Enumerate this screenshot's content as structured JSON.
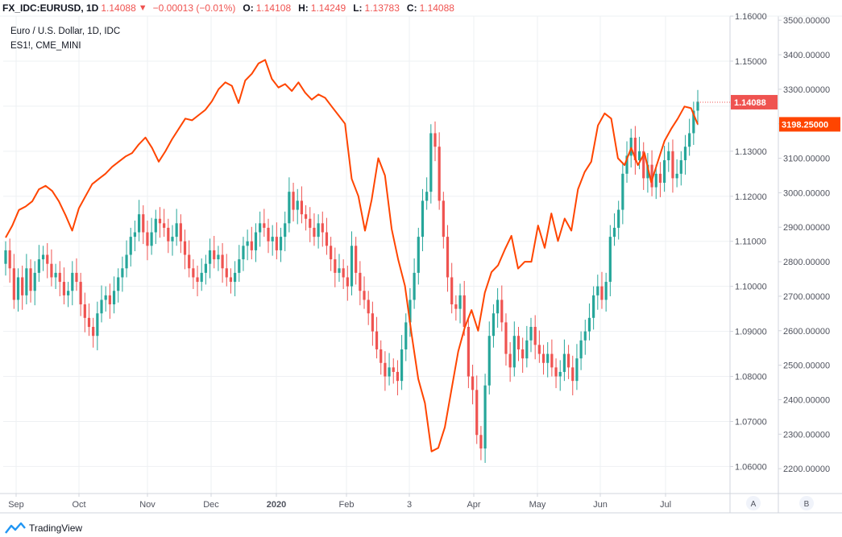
{
  "header": {
    "symbol": "FX_IDC:EURUSD, 1D",
    "last": "1.14088",
    "change": "−0.00013 (−0.01%)",
    "o_label": "O:",
    "o_value": "1.14108",
    "h_label": "H:",
    "h_value": "1.14249",
    "l_label": "L:",
    "l_value": "1.13783",
    "c_label": "C:",
    "c_value": "1.14088"
  },
  "legend": {
    "main_title": "Euro / U.S. Dollar, 1D, IDC",
    "compare_title": "ES1!, CME_MINI"
  },
  "footer": {
    "brand": "TradingView"
  },
  "scale_buttons": {
    "a": "A",
    "b": "B"
  },
  "colors": {
    "up": "#26a69a",
    "down": "#ef5350",
    "compare_line": "#ff4500",
    "grid": "#eef0f3",
    "axis_text": "#50535e",
    "border": "#d1d4dc"
  },
  "chart_data": {
    "type": "candlestick",
    "title": "Euro / U.S. Dollar, 1D, IDC",
    "x_tick_labels": [
      "Sep",
      "Oct",
      "Nov",
      "Dec",
      "2020",
      "Feb",
      "3",
      "Apr",
      "May",
      "Jun",
      "Jul"
    ],
    "left_axis": {
      "name": "EURUSD",
      "range": [
        1.054,
        1.16
      ],
      "ticks": [
        "1.16000",
        "1.15000",
        "1.14000",
        "1.13000",
        "1.12000",
        "1.11000",
        "1.10000",
        "1.09000",
        "1.08000",
        "1.07000",
        "1.06000"
      ],
      "last_price_label": "1.14088"
    },
    "right_axis": {
      "name": "ES1!",
      "range": [
        2128,
        3512
      ],
      "ticks": [
        "3500.00000",
        "3400.00000",
        "3300.00000",
        "3200.00000",
        "3100.00000",
        "3000.00000",
        "2900.00000",
        "2800.00000",
        "2700.00000",
        "2600.00000",
        "2500.00000",
        "2400.00000",
        "2300.00000",
        "2200.00000"
      ],
      "last_price_label": "3198.25000"
    },
    "series": [
      {
        "name": "EURUSD",
        "axis": "left",
        "style": "candles",
        "closes": [
          1.108,
          1.104,
          1.097,
          1.102,
          1.098,
          1.104,
          1.099,
          1.103,
          1.106,
          1.107,
          1.105,
          1.102,
          1.103,
          1.101,
          1.098,
          1.099,
          1.103,
          1.101,
          1.096,
          1.093,
          1.091,
          1.089,
          1.094,
          1.097,
          1.098,
          1.096,
          1.099,
          1.102,
          1.104,
          1.107,
          1.111,
          1.112,
          1.116,
          1.112,
          1.109,
          1.112,
          1.115,
          1.114,
          1.113,
          1.11,
          1.111,
          1.114,
          1.11,
          1.107,
          1.104,
          1.102,
          1.101,
          1.103,
          1.105,
          1.108,
          1.106,
          1.107,
          1.104,
          1.102,
          1.101,
          1.103,
          1.106,
          1.109,
          1.11,
          1.108,
          1.112,
          1.114,
          1.113,
          1.11,
          1.111,
          1.108,
          1.111,
          1.114,
          1.121,
          1.117,
          1.119,
          1.116,
          1.115,
          1.113,
          1.111,
          1.114,
          1.112,
          1.109,
          1.106,
          1.103,
          1.104,
          1.102,
          1.1,
          1.109,
          1.103,
          1.099,
          1.097,
          1.094,
          1.09,
          1.086,
          1.083,
          1.08,
          1.082,
          1.081,
          1.079,
          1.086,
          1.092,
          1.097,
          1.103,
          1.111,
          1.119,
          1.121,
          1.134,
          1.131,
          1.119,
          1.111,
          1.102,
          1.096,
          1.095,
          1.098,
          1.091,
          1.08,
          1.077,
          1.067,
          1.064,
          1.078,
          1.089,
          1.094,
          1.097,
          1.092,
          1.085,
          1.082,
          1.089,
          1.086,
          1.084,
          1.088,
          1.091,
          1.087,
          1.085,
          1.083,
          1.085,
          1.082,
          1.08,
          1.081,
          1.085,
          1.082,
          1.079,
          1.084,
          1.088,
          1.09,
          1.093,
          1.098,
          1.1,
          1.097,
          1.101,
          1.111,
          1.113,
          1.117,
          1.125,
          1.129,
          1.133,
          1.128,
          1.13,
          1.124,
          1.127,
          1.122,
          1.125,
          1.123,
          1.128,
          1.13,
          1.124,
          1.125,
          1.128,
          1.131,
          1.134,
          1.139,
          1.141
        ]
      },
      {
        "name": "ES1!",
        "axis": "right",
        "style": "line",
        "values": [
          2870,
          2905,
          2950,
          2960,
          2975,
          3010,
          3020,
          3005,
          2975,
          2935,
          2890,
          2955,
          2990,
          3025,
          3040,
          3055,
          3075,
          3090,
          3105,
          3115,
          3140,
          3160,
          3130,
          3090,
          3120,
          3155,
          3185,
          3215,
          3210,
          3225,
          3240,
          3265,
          3300,
          3320,
          3310,
          3260,
          3325,
          3345,
          3375,
          3385,
          3330,
          3305,
          3315,
          3295,
          3320,
          3290,
          3270,
          3285,
          3275,
          3250,
          3225,
          3200,
          3040,
          2990,
          2890,
          2980,
          3100,
          3050,
          2895,
          2805,
          2730,
          2590,
          2460,
          2390,
          2250,
          2260,
          2320,
          2430,
          2540,
          2610,
          2660,
          2600,
          2710,
          2770,
          2790,
          2835,
          2875,
          2780,
          2800,
          2800,
          2905,
          2840,
          2940,
          2860,
          2925,
          2890,
          3010,
          3060,
          3090,
          3195,
          3230,
          3215,
          3100,
          3080,
          3130,
          3080,
          3115,
          3030,
          3090,
          3150,
          3185,
          3215,
          3250,
          3245,
          3198
        ]
      }
    ],
    "grid": true,
    "legend": "top-left"
  }
}
